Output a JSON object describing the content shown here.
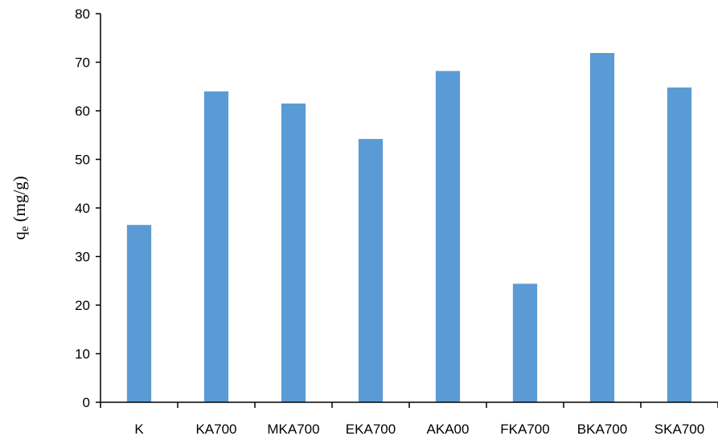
{
  "chart_data": {
    "type": "bar",
    "title": "",
    "xlabel": "",
    "ylabel": {
      "base": "q",
      "subscript": "e",
      "unit": " (mg/g)"
    },
    "categories": [
      "K",
      "KA700",
      "MKA700",
      "EKA700",
      "AKA00",
      "FKA700",
      "BKA700",
      "SKA700"
    ],
    "values": [
      36.5,
      64.0,
      61.5,
      54.2,
      68.2,
      24.4,
      71.9,
      64.8
    ],
    "ylim": [
      0,
      80
    ],
    "yticks": [
      0,
      10,
      20,
      30,
      40,
      50,
      60,
      70,
      80
    ],
    "grid": false,
    "legend": "none",
    "bar_color": "#5B9BD5"
  }
}
